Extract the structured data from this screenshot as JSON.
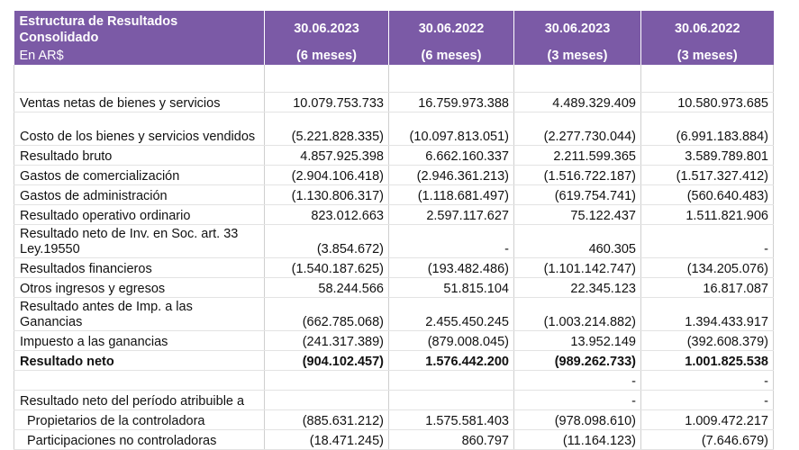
{
  "header": {
    "title": "Estructura de Resultados Consolidado",
    "currency": "En AR$",
    "columns": [
      {
        "date": "30.06.2023",
        "period": "(6 meses)"
      },
      {
        "date": "30.06.2022",
        "period": "(6 meses)"
      },
      {
        "date": "30.06.2023",
        "period": "(3 meses)"
      },
      {
        "date": "30.06.2022",
        "period": "(3 meses)"
      }
    ]
  },
  "rows": [
    {
      "label": "Ventas netas de bienes y servicios",
      "values": [
        "10.079.753.733",
        "16.759.973.388",
        "4.489.329.409",
        "10.580.973.685"
      ]
    },
    {
      "label": "Costo de los bienes y servicios vendidos",
      "values": [
        "(5.221.828.335)",
        "(10.097.813.051)",
        "(2.277.730.044)",
        "(6.991.183.884)"
      ]
    },
    {
      "label": "Resultado bruto",
      "values": [
        "4.857.925.398",
        "6.662.160.337",
        "2.211.599.365",
        "3.589.789.801"
      ]
    },
    {
      "label": "Gastos de comercialización",
      "values": [
        "(2.904.106.418)",
        "(2.946.361.213)",
        "(1.516.722.187)",
        "(1.517.327.412)"
      ]
    },
    {
      "label": "Gastos de administración",
      "values": [
        "(1.130.806.317)",
        "(1.118.681.497)",
        "(619.754.741)",
        "(560.640.483)"
      ]
    },
    {
      "label": "Resultado operativo ordinario",
      "values": [
        "823.012.663",
        "2.597.117.627",
        "75.122.437",
        "1.511.821.906"
      ]
    },
    {
      "label": "Resultado neto de Inv. en Soc. art. 33 Ley.19550",
      "values": [
        "(3.854.672)",
        "-",
        "460.305",
        "-"
      ]
    },
    {
      "label": "Resultados financieros",
      "values": [
        "(1.540.187.625)",
        "(193.482.486)",
        "(1.101.142.747)",
        "(134.205.076)"
      ]
    },
    {
      "label": "Otros ingresos y egresos",
      "values": [
        "58.244.566",
        "51.815.104",
        "22.345.123",
        "16.817.087"
      ]
    },
    {
      "label": "Resultado antes de Imp. a las Ganancias",
      "values": [
        "(662.785.068)",
        "2.455.450.245",
        "(1.003.214.882)",
        "1.394.433.917"
      ]
    },
    {
      "label": "Impuesto a las ganancias",
      "values": [
        "(241.317.389)",
        "(879.008.045)",
        "13.952.149",
        "(392.608.379)"
      ]
    },
    {
      "label": "Resultado neto",
      "values": [
        "(904.102.457)",
        "1.576.442.200",
        "(989.262.733)",
        "1.001.825.538"
      ]
    },
    {
      "label": "",
      "values": [
        "",
        "",
        "-",
        "-"
      ]
    },
    {
      "label": "Resultado neto del período atribuible a",
      "values": [
        "",
        "",
        "-",
        "-"
      ]
    },
    {
      "label": "Propietarios de la controladora",
      "values": [
        "(885.631.212)",
        "1.575.581.403",
        "(978.098.610)",
        "1.009.472.217"
      ]
    },
    {
      "label": "Participaciones no controladoras",
      "values": [
        "(18.471.245)",
        "860.797",
        "(11.164.123)",
        "(7.646.679)"
      ]
    }
  ]
}
